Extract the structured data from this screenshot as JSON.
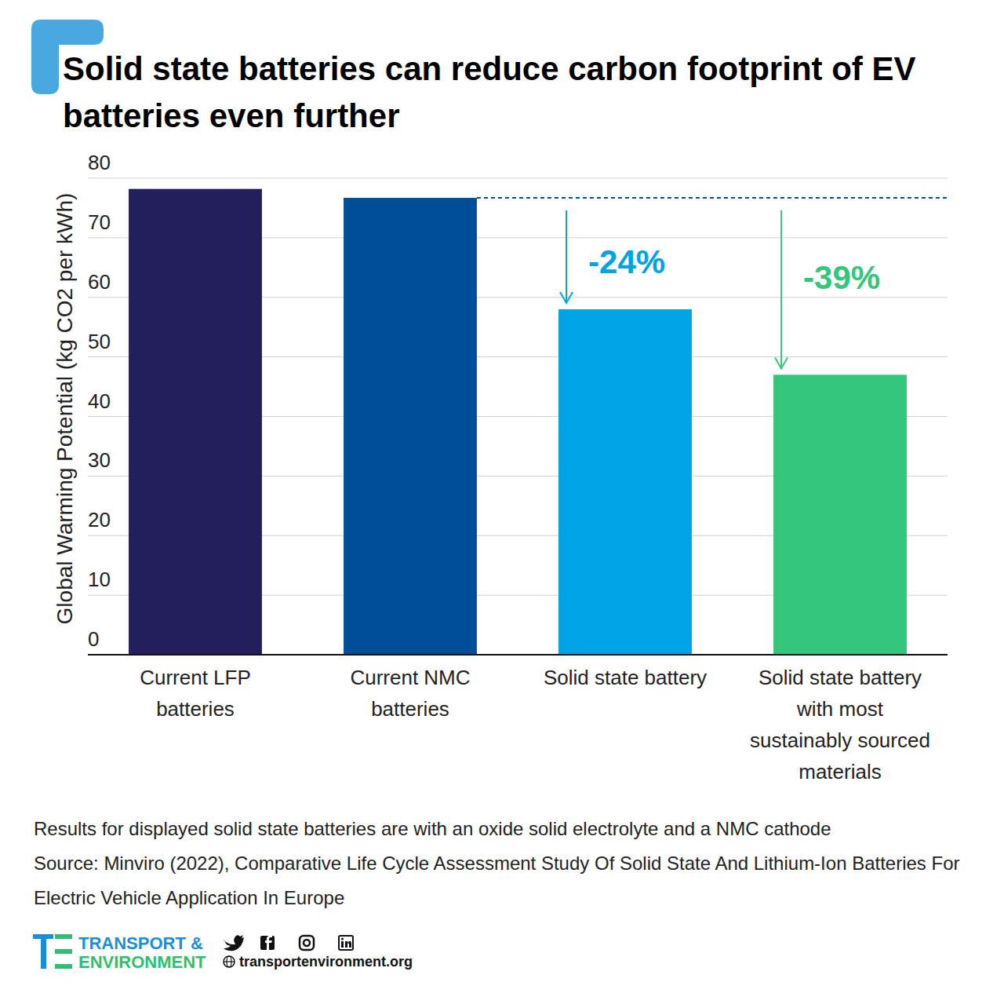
{
  "chart_data": {
    "type": "bar",
    "title": "Solid state batteries can reduce carbon footprint of EV batteries even further",
    "y_label": "Global Warming Potential (kg CO2 per kWh)",
    "categories": [
      "Current LFP batteries",
      "Current NMC batteries",
      "Solid state battery",
      "Solid state battery with most sustainably sourced materials"
    ],
    "values": [
      78.2,
      76.7,
      58.0,
      47.0
    ],
    "colors": [
      "#231f5c",
      "#004f9a",
      "#00a3e4",
      "#34c77b"
    ],
    "ylim": [
      0,
      80
    ],
    "yticks": [
      0,
      10,
      20,
      30,
      40,
      50,
      60,
      70,
      80
    ],
    "grid": true,
    "annotations": [
      "-24%",
      "-39%"
    ],
    "notes": [
      "Results for displayed solid state batteries are with an oxide solid electrolyte and a NMC cathode",
      "Source: Minviro (2022), Comparative Life Cycle Assessment Study Of Solid State And Lithium-Ion Batteries For Electric Vehicle Application In Europe"
    ]
  },
  "footer": {
    "organization": [
      "TRANSPORT &",
      "ENVIRONMENT"
    ],
    "website": "transportenvironment.org"
  }
}
